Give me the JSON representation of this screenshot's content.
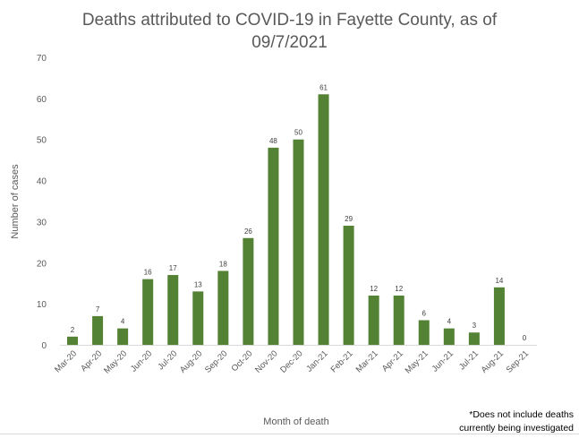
{
  "chart_data": {
    "type": "bar",
    "title_line1": "Deaths attributed to COVID-19 in Fayette County, as of",
    "title_line2": "09/7/2021",
    "xlabel": "Month of death",
    "ylabel": "Number of cases",
    "ylim": [
      0,
      70
    ],
    "yticks": [
      "0",
      "10",
      "20",
      "30",
      "40",
      "50",
      "60",
      "70"
    ],
    "grid": false,
    "bar_color": "#548235",
    "categories": [
      "Mar-20",
      "Apr-20",
      "May-20",
      "Jun-20",
      "Jul-20",
      "Aug-20",
      "Sep-20",
      "Oct-20",
      "Nov-20",
      "Dec-20",
      "Jan-21",
      "Feb-21",
      "Mar-21",
      "Apr-21",
      "May-21",
      "Jun-21",
      "Jul-21",
      "Aug-21",
      "Sep-21"
    ],
    "values": [
      2,
      7,
      4,
      16,
      17,
      13,
      18,
      26,
      48,
      50,
      61,
      29,
      12,
      12,
      6,
      4,
      3,
      14,
      0
    ],
    "footnote_line1": "*Does not include deaths",
    "footnote_line2": "currently being investigated"
  }
}
